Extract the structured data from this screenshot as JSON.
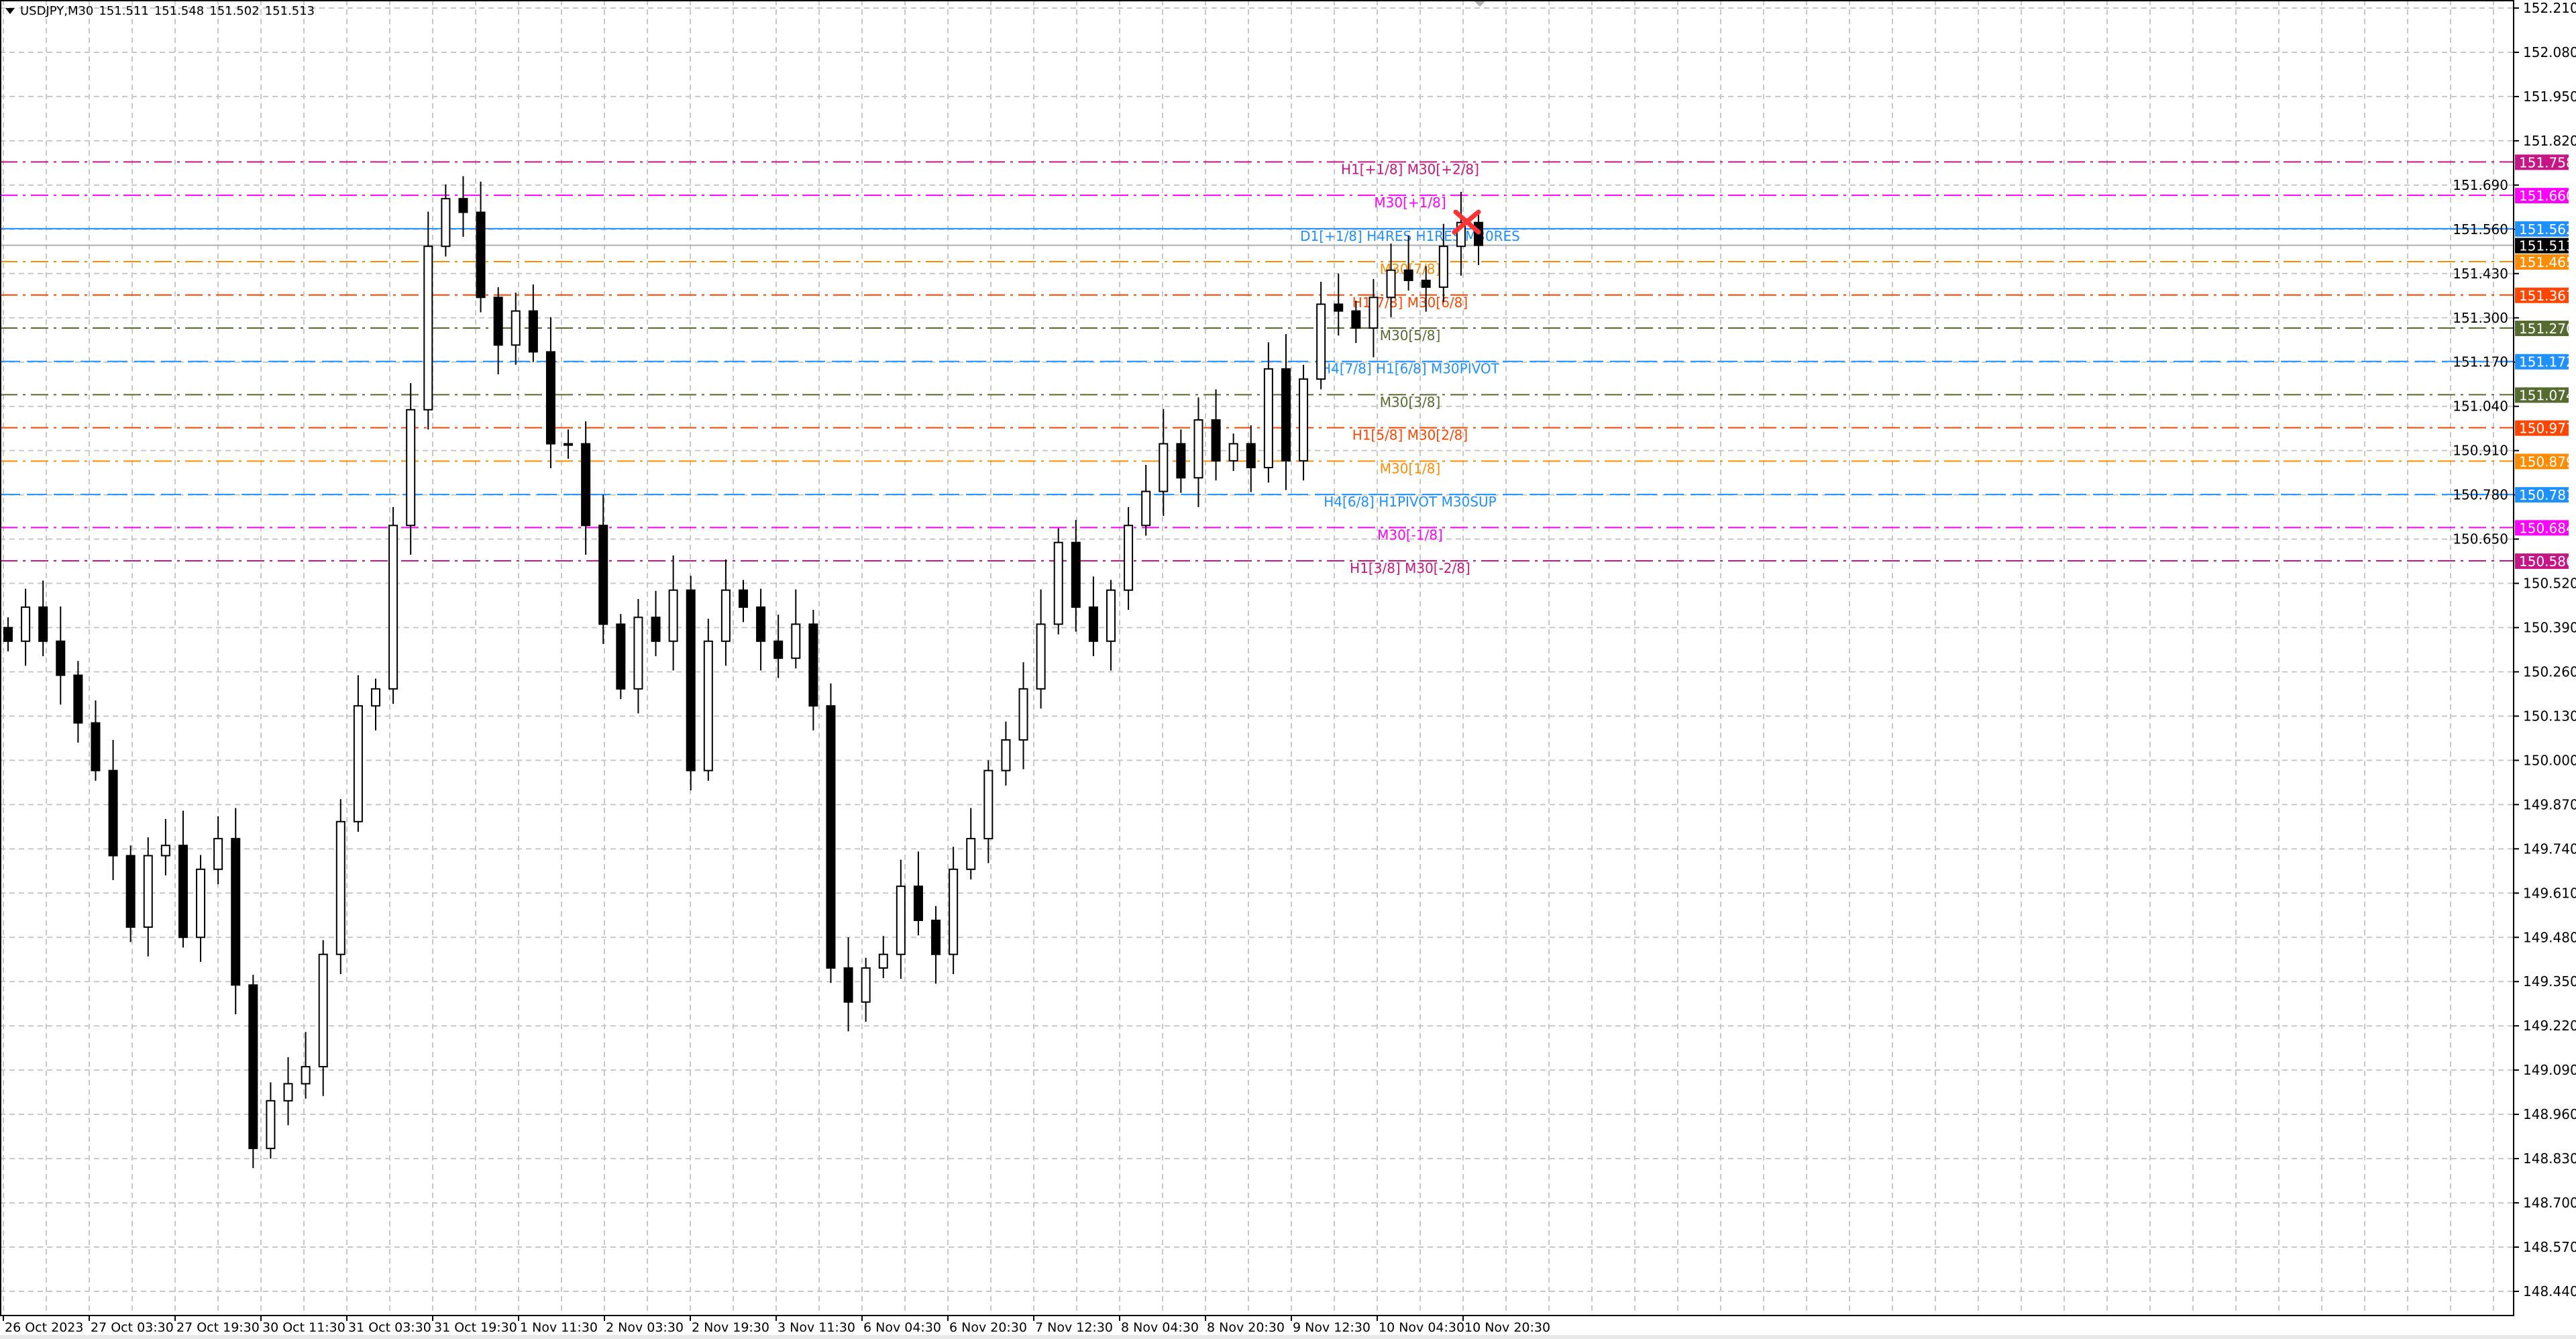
{
  "header": {
    "symbol": "USDJPY,M30",
    "open": "151.511",
    "high": "151.548",
    "low": "151.502",
    "close": "151.513"
  },
  "colors": {
    "background": "#ffffff",
    "grid": "#c0c0c0",
    "candle": "#000000",
    "marker": "#ff3333"
  },
  "chart_data": {
    "type": "candlestick",
    "timeframe": "M30",
    "ylim": [
      148.44,
      152.21
    ],
    "y_ticks": [
      "152.210",
      "152.080",
      "151.950",
      "151.820",
      "151.690",
      "151.560",
      "151.430",
      "151.300",
      "151.170",
      "151.040",
      "150.910",
      "150.780",
      "150.650",
      "150.520",
      "150.390",
      "150.260",
      "150.130",
      "150.000",
      "149.870",
      "149.740",
      "149.610",
      "149.480",
      "149.350",
      "149.220",
      "149.090",
      "148.960",
      "148.830",
      "148.700",
      "148.570",
      "148.440"
    ],
    "x_ticks": [
      "26 Oct 2023",
      "27 Oct 03:30",
      "27 Oct 19:30",
      "30 Oct 11:30",
      "31 Oct 03:30",
      "31 Oct 19:30",
      "1 Nov 11:30",
      "2 Nov 03:30",
      "2 Nov 19:30",
      "3 Nov 11:30",
      "6 Nov 04:30",
      "6 Nov 20:30",
      "7 Nov 12:30",
      "8 Nov 04:30",
      "8 Nov 20:30",
      "9 Nov 12:30",
      "10 Nov 04:30",
      "10 Nov 20:30"
    ],
    "closes": [
      150.35,
      150.45,
      150.35,
      150.25,
      150.11,
      149.97,
      149.72,
      149.51,
      149.72,
      149.75,
      149.48,
      149.68,
      149.77,
      149.34,
      148.86,
      149.0,
      149.05,
      149.1,
      149.43,
      149.82,
      150.16,
      150.21,
      150.69,
      151.03,
      151.51,
      151.65,
      151.61,
      151.36,
      151.22,
      151.32,
      151.2,
      150.93,
      150.93,
      150.69,
      150.4,
      150.21,
      150.42,
      150.35,
      150.5,
      149.97,
      150.35,
      150.5,
      150.45,
      150.35,
      150.3,
      150.4,
      150.16,
      149.39,
      149.29,
      149.39,
      149.43,
      149.63,
      149.53,
      149.43,
      149.68,
      149.77,
      149.97,
      150.06,
      150.21,
      150.4,
      150.64,
      150.45,
      150.35,
      150.5,
      150.69,
      150.79,
      150.93,
      150.83,
      151.0,
      150.88,
      150.93,
      150.86,
      151.15,
      150.88,
      151.12,
      151.34,
      151.32,
      151.27,
      151.36,
      151.44,
      151.41,
      151.39,
      151.51,
      151.58,
      151.513
    ],
    "current_price": {
      "value": "151.513",
      "color": "#000000"
    },
    "levels": [
      {
        "label": "H1[+1/8] M30[+2/8]",
        "price": "151.758",
        "color": "#c71585",
        "style": "dashdot"
      },
      {
        "label": "M30[+1/8]",
        "price": "151.660",
        "color": "#ff00ff",
        "style": "dashdot"
      },
      {
        "label": "D1[+1/8] H4RES H1RES M30RES",
        "price": "151.562",
        "color": "#1e90ff",
        "style": "solid"
      },
      {
        "label": "M30[7/8]",
        "price": "151.465",
        "color": "#ff8c00",
        "style": "dashdot"
      },
      {
        "label": "H1[7/8] M30[6/8]",
        "price": "151.367",
        "color": "#ff4500",
        "style": "dashdot"
      },
      {
        "label": "M30[5/8]",
        "price": "151.270",
        "color": "#556b2f",
        "style": "dashdot"
      },
      {
        "label": "H4[7/8] H1[6/8] M30PIVOT",
        "price": "151.172",
        "color": "#1e90ff",
        "style": "dash"
      },
      {
        "label": "M30[3/8]",
        "price": "151.074",
        "color": "#556b2f",
        "style": "dashdot"
      },
      {
        "label": "H1[5/8] M30[2/8]",
        "price": "150.977",
        "color": "#ff4500",
        "style": "dashdot"
      },
      {
        "label": "M30[1/8]",
        "price": "150.879",
        "color": "#ff8c00",
        "style": "dashdot"
      },
      {
        "label": "H4[6/8] H1PIVOT M30SUP",
        "price": "150.781",
        "color": "#1e90ff",
        "style": "dash"
      },
      {
        "label": "M30[-1/8]",
        "price": "150.684",
        "color": "#ff00ff",
        "style": "dashdot"
      },
      {
        "label": "H1[3/8] M30[-2/8]",
        "price": "150.586",
        "color": "#c71585",
        "style": "dashdot"
      }
    ]
  }
}
